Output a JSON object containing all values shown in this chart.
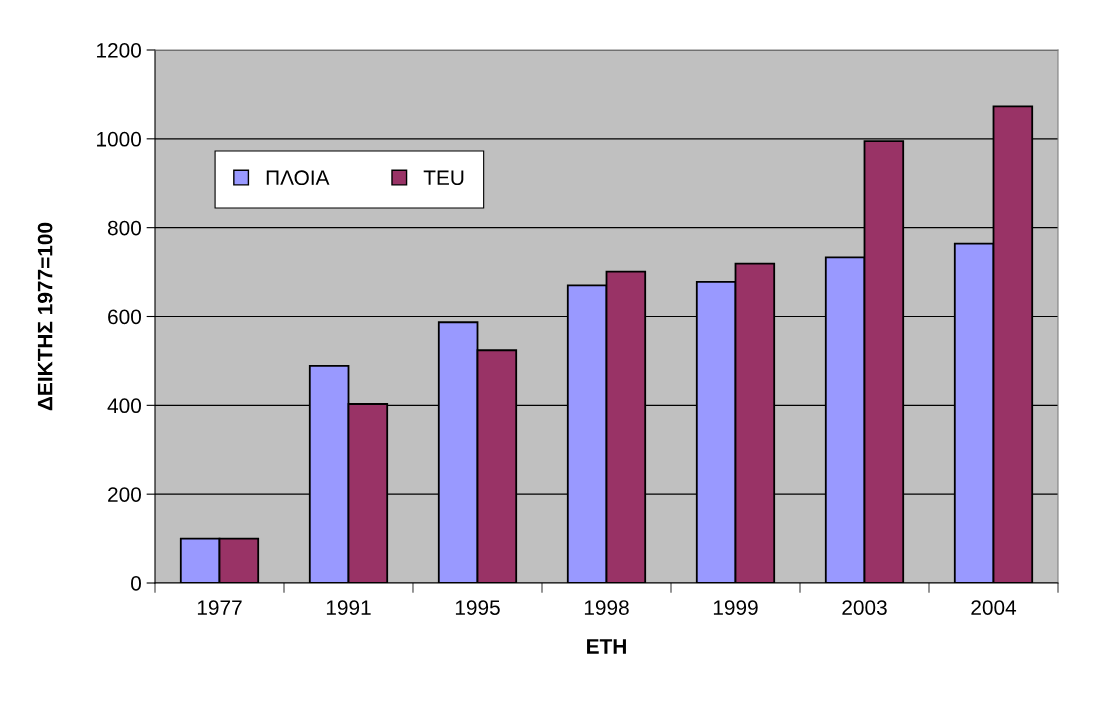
{
  "chart_data": {
    "type": "bar",
    "categories": [
      "1977",
      "1991",
      "1995",
      "1998",
      "1999",
      "2003",
      "2004"
    ],
    "series": [
      {
        "name": "ΠΛΟΙΑ",
        "color": "#9999ff",
        "values": [
          100,
          489,
          587,
          670,
          678,
          733,
          764
        ]
      },
      {
        "name": "TEU",
        "color": "#993366",
        "values": [
          100,
          403,
          524,
          701,
          719,
          995,
          1073
        ]
      }
    ],
    "xlabel": "ΕΤΗ",
    "ylabel": "ΔΕΙΚΤΗΣ 1977=100",
    "ylim": [
      0,
      1200
    ],
    "yticks": [
      0,
      200,
      400,
      600,
      800,
      1000,
      1200
    ],
    "grid": "y",
    "legend": "top left"
  }
}
